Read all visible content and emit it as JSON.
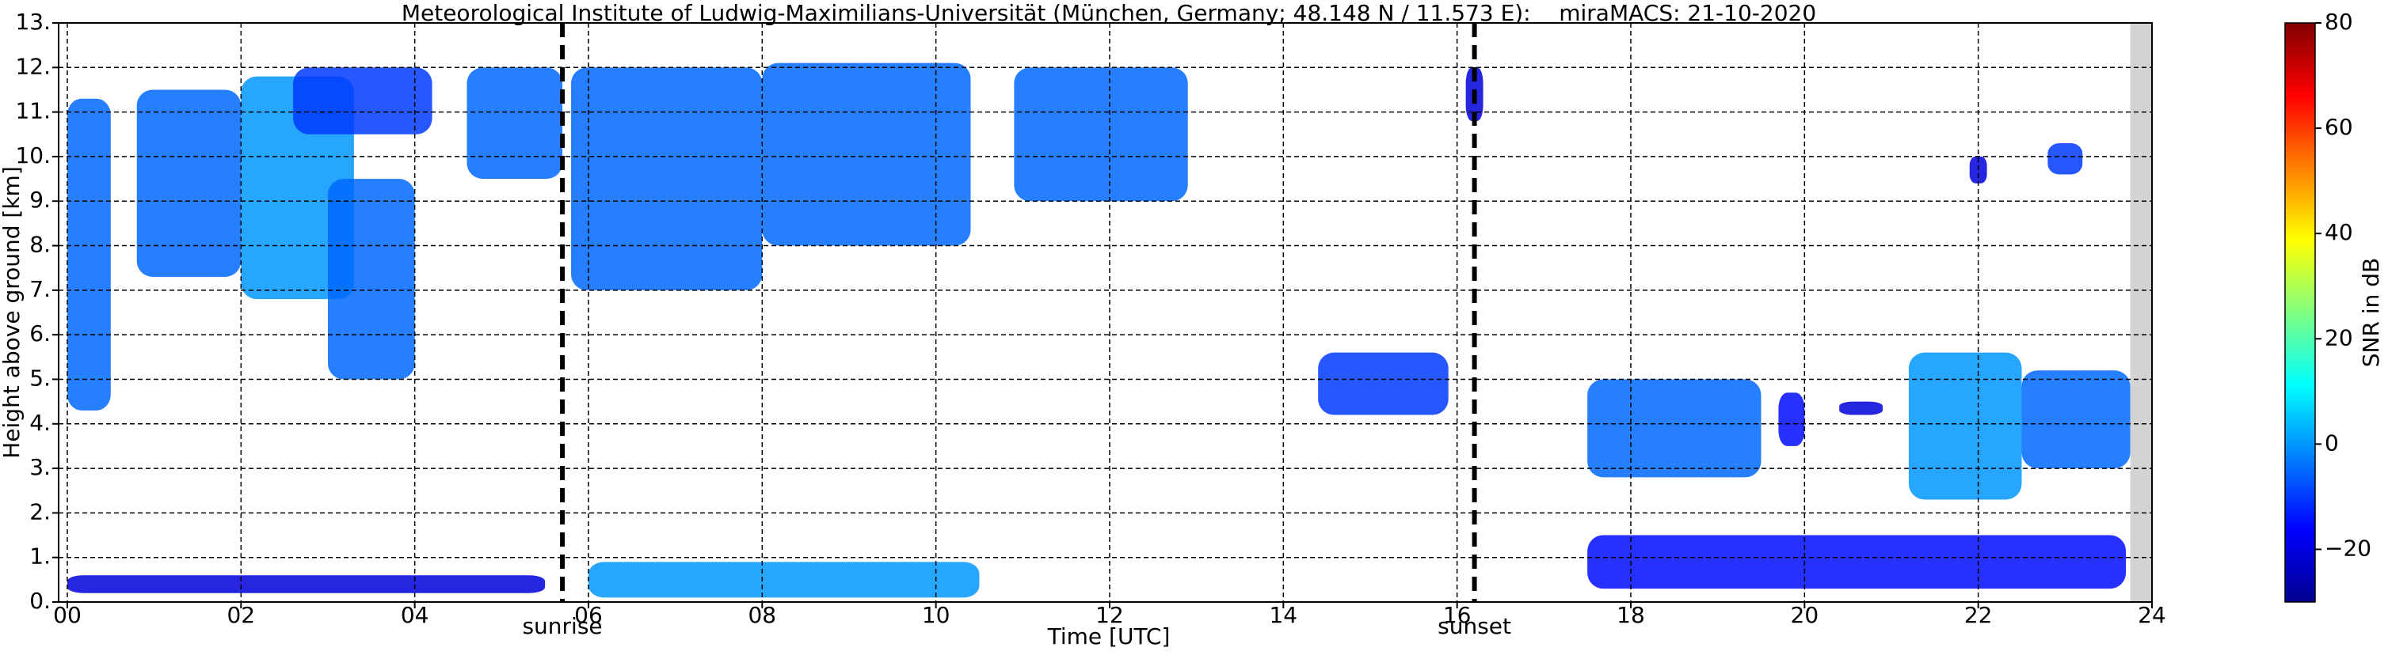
{
  "chart_data": {
    "type": "time-height",
    "title": "Meteorological Institute of Ludwig-Maximilians-Universität (München, Germany; 48.148 N / 11.573 E):    miraMACS: 21-10-2020",
    "x_label": "Time [UTC]",
    "y_label": "Height above ground [km]",
    "xlim": [
      -0.1,
      24
    ],
    "ylim": [
      0,
      13
    ],
    "xticks": [
      {
        "value": 0,
        "label": "00"
      },
      {
        "value": 2,
        "label": "02"
      },
      {
        "value": 4,
        "label": "04"
      },
      {
        "value": 6,
        "label": "06"
      },
      {
        "value": 8,
        "label": "08"
      },
      10,
      12,
      14,
      16,
      18,
      20,
      22,
      24
    ],
    "yticks": [
      {
        "value": 0,
        "label": "0."
      },
      {
        "value": 1,
        "label": "1."
      },
      {
        "value": 2,
        "label": "2."
      },
      {
        "value": 3,
        "label": "3."
      },
      {
        "value": 4,
        "label": "4."
      },
      {
        "value": 5,
        "label": "5."
      },
      {
        "value": 6,
        "label": "6."
      },
      {
        "value": 7,
        "label": "7."
      },
      {
        "value": 8,
        "label": "8."
      },
      {
        "value": 9,
        "label": "9."
      },
      {
        "value": 10,
        "label": "10."
      },
      {
        "value": 11,
        "label": "11."
      },
      {
        "value": 12,
        "label": "12."
      },
      {
        "value": 13,
        "label": "13."
      }
    ],
    "grid": true,
    "no_data_span": [
      23.75,
      24
    ],
    "markers": [
      {
        "x": 5.7,
        "label": "sunrise"
      },
      {
        "x": 16.2,
        "label": "sunset"
      }
    ],
    "echoes": [
      {
        "t": [
          0.0,
          0.5
        ],
        "h": [
          4.3,
          11.3
        ],
        "snr": -5
      },
      {
        "t": [
          0.8,
          2.0
        ],
        "h": [
          7.3,
          11.5
        ],
        "snr": -5
      },
      {
        "t": [
          2.0,
          3.3
        ],
        "h": [
          6.8,
          11.8
        ],
        "snr": 0
      },
      {
        "t": [
          3.0,
          4.0
        ],
        "h": [
          5.0,
          9.5
        ],
        "snr": -5
      },
      {
        "t": [
          2.6,
          4.2
        ],
        "h": [
          10.5,
          12.0
        ],
        "snr": -10
      },
      {
        "t": [
          4.6,
          5.7
        ],
        "h": [
          9.5,
          12.0
        ],
        "snr": -5
      },
      {
        "t": [
          5.8,
          8.0
        ],
        "h": [
          7.0,
          12.0
        ],
        "snr": -5
      },
      {
        "t": [
          8.0,
          10.4
        ],
        "h": [
          8.0,
          12.1
        ],
        "snr": -5
      },
      {
        "t": [
          10.9,
          12.9
        ],
        "h": [
          9.0,
          12.0
        ],
        "snr": -5
      },
      {
        "t": [
          14.4,
          15.9
        ],
        "h": [
          4.2,
          5.6
        ],
        "snr": -10
      },
      {
        "t": [
          17.5,
          19.5
        ],
        "h": [
          2.8,
          5.0
        ],
        "snr": -5
      },
      {
        "t": [
          19.7,
          20.0
        ],
        "h": [
          3.5,
          4.7
        ],
        "snr": -15
      },
      {
        "t": [
          20.4,
          20.9
        ],
        "h": [
          4.2,
          4.5
        ],
        "snr": -20
      },
      {
        "t": [
          21.2,
          22.5
        ],
        "h": [
          2.3,
          5.6
        ],
        "snr": 0
      },
      {
        "t": [
          22.5,
          23.75
        ],
        "h": [
          3.0,
          5.2
        ],
        "snr": -5
      },
      {
        "t": [
          21.9,
          22.1
        ],
        "h": [
          9.4,
          10.0
        ],
        "snr": -20
      },
      {
        "t": [
          22.8,
          23.2
        ],
        "h": [
          9.6,
          10.3
        ],
        "snr": -10
      },
      {
        "t": [
          6.0,
          10.5
        ],
        "h": [
          0.1,
          0.9
        ],
        "snr": 0
      },
      {
        "t": [
          0.0,
          5.5
        ],
        "h": [
          0.2,
          0.6
        ],
        "snr": -20
      },
      {
        "t": [
          17.5,
          23.7
        ],
        "h": [
          0.3,
          1.5
        ],
        "snr": -15
      },
      {
        "t": [
          16.1,
          16.3
        ],
        "h": [
          10.8,
          12.0
        ],
        "snr": -20
      }
    ],
    "colorbar": {
      "label": "SNR in dB",
      "lim": [
        -30,
        80
      ],
      "ticks": [
        {
          "value": -20,
          "label": "−20"
        },
        0,
        20,
        40,
        60,
        80
      ]
    }
  }
}
